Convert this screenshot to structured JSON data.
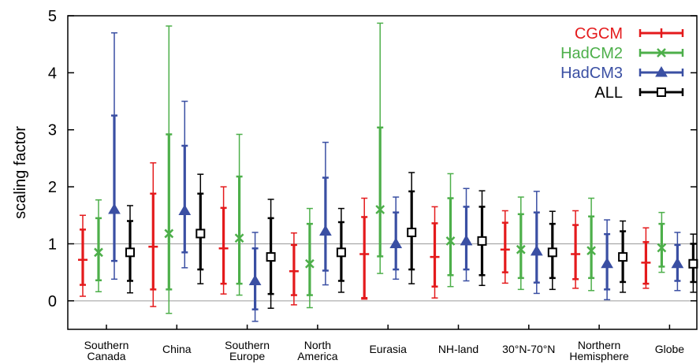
{
  "chart_data": {
    "type": "errorbar",
    "ylabel": "scaling factor",
    "ylim": [
      -0.5,
      5
    ],
    "yticks": [
      "0",
      "1",
      "2",
      "3",
      "4",
      "5"
    ],
    "reference_lines": [
      0,
      1
    ],
    "legend_placement": "top-right",
    "categories": [
      [
        "Southern",
        "Canada"
      ],
      [
        "China"
      ],
      [
        "Southern",
        "Europe"
      ],
      [
        "North",
        "America"
      ],
      [
        "Eurasia"
      ],
      [
        "NH-land"
      ],
      [
        "30°N-70°N"
      ],
      [
        "Northern",
        "Hemisphere"
      ],
      [
        "Globe"
      ]
    ],
    "series": [
      {
        "name": "CGCM",
        "color": "#e41a1c",
        "marker": "plus",
        "best": [
          0.72,
          0.95,
          0.92,
          0.52,
          0.82,
          0.77,
          0.9,
          0.82,
          0.67
        ],
        "inner_lo": [
          0.28,
          0.2,
          0.3,
          0.1,
          0.05,
          0.25,
          0.5,
          0.38,
          0.3
        ],
        "inner_hi": [
          1.25,
          1.88,
          1.63,
          0.98,
          1.47,
          1.36,
          1.37,
          1.33,
          1.03
        ],
        "outer_lo": [
          0.08,
          -0.1,
          0.12,
          -0.07,
          0.03,
          0.05,
          0.31,
          0.22,
          0.22
        ],
        "outer_hi": [
          1.5,
          2.42,
          2.0,
          1.19,
          1.8,
          1.65,
          1.58,
          1.58,
          1.28
        ]
      },
      {
        "name": "HadCM2",
        "color": "#4daf4a",
        "marker": "x",
        "best": [
          0.85,
          1.18,
          1.1,
          0.65,
          1.6,
          1.05,
          0.9,
          0.88,
          0.93
        ],
        "inner_lo": [
          0.36,
          0.2,
          0.3,
          0.1,
          0.78,
          0.45,
          0.4,
          0.4,
          0.6
        ],
        "inner_hi": [
          1.45,
          2.92,
          2.18,
          1.35,
          3.04,
          1.8,
          1.52,
          1.48,
          1.35
        ],
        "outer_lo": [
          0.16,
          -0.22,
          0.1,
          -0.12,
          0.48,
          0.25,
          0.2,
          0.18,
          0.5
        ],
        "outer_hi": [
          1.77,
          4.82,
          2.92,
          1.62,
          4.87,
          2.23,
          1.82,
          1.8,
          1.55
        ]
      },
      {
        "name": "HadCM3",
        "color": "#3a4fa3",
        "marker": "triangle",
        "best": [
          1.6,
          1.58,
          0.35,
          1.22,
          1.0,
          1.05,
          0.87,
          0.65,
          0.65
        ],
        "inner_lo": [
          0.7,
          0.85,
          -0.15,
          0.53,
          0.55,
          0.55,
          0.32,
          0.2,
          0.35
        ],
        "inner_hi": [
          3.25,
          2.72,
          0.92,
          2.16,
          1.55,
          1.65,
          1.55,
          1.17,
          0.98
        ],
        "outer_lo": [
          0.38,
          0.58,
          -0.36,
          0.28,
          0.38,
          0.35,
          0.13,
          0.02,
          0.18
        ],
        "outer_hi": [
          4.7,
          3.5,
          1.2,
          2.78,
          1.82,
          1.97,
          1.92,
          1.42,
          1.2
        ]
      },
      {
        "name": "ALL",
        "color": "#000000",
        "marker": "square",
        "best": [
          0.85,
          1.18,
          0.77,
          0.85,
          1.2,
          1.05,
          0.85,
          0.77,
          0.65
        ],
        "inner_lo": [
          0.35,
          0.55,
          0.12,
          0.35,
          0.55,
          0.45,
          0.4,
          0.33,
          0.33
        ],
        "inner_hi": [
          1.4,
          1.88,
          1.45,
          1.38,
          1.92,
          1.65,
          1.35,
          1.22,
          1.0
        ],
        "outer_lo": [
          0.14,
          0.3,
          -0.13,
          0.15,
          0.3,
          0.27,
          0.2,
          0.15,
          0.15
        ],
        "outer_hi": [
          1.67,
          2.22,
          1.78,
          1.62,
          2.25,
          1.93,
          1.57,
          1.4,
          1.17
        ]
      }
    ]
  }
}
